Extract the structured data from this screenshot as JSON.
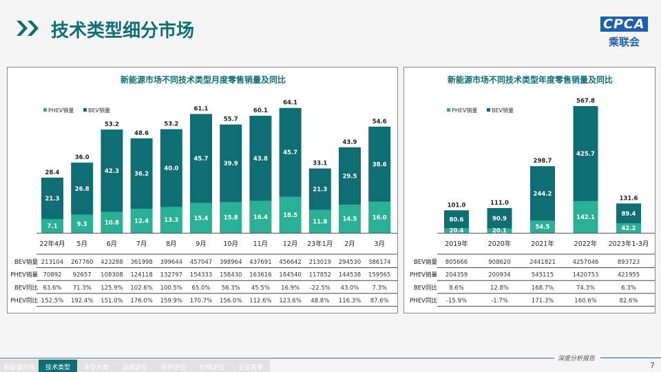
{
  "header": {
    "title": "技术类型细分市场",
    "logo_text": "CPCA",
    "logo_cn": "乘联会"
  },
  "colors": {
    "phev": "#2bb096",
    "bev": "#0e6e74",
    "title": "#0e6e74"
  },
  "chart_data": [
    {
      "type": "bar",
      "stacked": true,
      "title": "新能源市场不同技术类型月度零售销量及同比",
      "categories": [
        "22年4月",
        "5月",
        "6月",
        "7月",
        "8月",
        "9月",
        "10月",
        "11月",
        "12月",
        "23年1月",
        "2月",
        "3月"
      ],
      "series": [
        {
          "name": "PHEV销量",
          "values": [
            7.1,
            9.3,
            10.8,
            12.4,
            13.3,
            15.4,
            15.8,
            16.4,
            18.5,
            11.8,
            14.5,
            16.0
          ]
        },
        {
          "name": "BEV销量",
          "values": [
            21.3,
            26.8,
            42.3,
            36.2,
            40.0,
            45.7,
            39.9,
            43.8,
            45.7,
            21.3,
            29.5,
            38.6
          ]
        }
      ],
      "totals": [
        28.4,
        36.0,
        53.2,
        48.6,
        53.2,
        61.1,
        55.7,
        60.1,
        64.1,
        33.1,
        43.9,
        54.6
      ],
      "legend": "top-left",
      "table": {
        "rows": [
          {
            "label": "BEV销量",
            "values": [
              "213104",
              "267760",
              "423288",
              "361998",
              "399644",
              "457047",
              "398964",
              "437691",
              "456642",
              "213019",
              "294530",
              "386174"
            ]
          },
          {
            "label": "PHEV销量",
            "values": [
              "70892",
              "92657",
              "108308",
              "124118",
              "132797",
              "154333",
              "158430",
              "163616",
              "184540",
              "117852",
              "144538",
              "159565"
            ]
          },
          {
            "label": "BEV同比",
            "values": [
              "63.6%",
              "71.3%",
              "125.9%",
              "102.6%",
              "100.5%",
              "65.0%",
              "56.3%",
              "45.5%",
              "16.9%",
              "-22.5%",
              "43.0%",
              "7.3%"
            ]
          },
          {
            "label": "PHEV同比",
            "values": [
              "152.5%",
              "192.4%",
              "151.0%",
              "176.0%",
              "159.9%",
              "170.7%",
              "156.0%",
              "112.6%",
              "123.6%",
              "48.8%",
              "116.3%",
              "87.6%"
            ]
          }
        ]
      }
    },
    {
      "type": "bar",
      "stacked": true,
      "title": "新能源市场不同技术类型年度零售销量及同比",
      "categories": [
        "2019年",
        "2020年",
        "2021年",
        "2022年",
        "2023年1-3月"
      ],
      "series": [
        {
          "name": "PHEV销量",
          "values": [
            20.4,
            20.1,
            54.5,
            142.1,
            42.2
          ]
        },
        {
          "name": "BEV销量",
          "values": [
            80.6,
            90.9,
            244.2,
            425.7,
            89.4
          ]
        }
      ],
      "totals": [
        101.0,
        111.0,
        298.7,
        567.8,
        131.6
      ],
      "legend": "top-left",
      "table": {
        "rows": [
          {
            "label": "BEV销量",
            "values": [
              "805666",
              "908620",
              "2441821",
              "4257046",
              "893723"
            ]
          },
          {
            "label": "PHEV销量",
            "values": [
              "204359",
              "200934",
              "545115",
              "1420753",
              "421955"
            ]
          },
          {
            "label": "BEV同比",
            "values": [
              "8.6%",
              "12.8%",
              "168.7%",
              "74.3%",
              "6.3%"
            ]
          },
          {
            "label": "PHEV同比",
            "values": [
              "-15.9%",
              "-1.7%",
              "171.3%",
              "160.6%",
              "82.6%"
            ]
          }
        ]
      }
    }
  ],
  "footer": {
    "tabs": [
      "新能源市场",
      "技术类型",
      "车型大类",
      "品牌定位",
      "级别定位",
      "价格定位",
      "企业竞争"
    ],
    "active": 1,
    "report": "深度分析报告",
    "page": "7"
  }
}
